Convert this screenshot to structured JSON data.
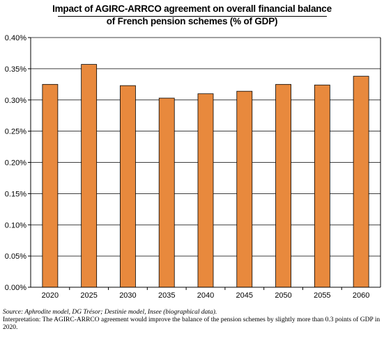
{
  "chart_data": {
    "type": "bar",
    "title": "Impact of AGIRC-ARRCO agreement on overall financial balance of French pension schemes (% of GDP)",
    "title_lines": [
      "Impact of AGIRC-ARRCO agreement on overall financial balance",
      "of French pension schemes (% of GDP)"
    ],
    "categories": [
      "2020",
      "2025",
      "2030",
      "2035",
      "2040",
      "2045",
      "2050",
      "2055",
      "2060"
    ],
    "values": [
      0.325,
      0.357,
      0.323,
      0.303,
      0.31,
      0.314,
      0.325,
      0.324,
      0.338
    ],
    "yticks": [
      0.0,
      0.05,
      0.1,
      0.15,
      0.2,
      0.25,
      0.3,
      0.35,
      0.4
    ],
    "ytick_labels": [
      "0.00%",
      "0.05%",
      "0.10%",
      "0.15%",
      "0.20%",
      "0.25%",
      "0.30%",
      "0.35%",
      "0.40%"
    ],
    "ylim": [
      0,
      0.4
    ],
    "xlabel": "",
    "ylabel": "",
    "grid": true,
    "legend": "none",
    "bar_color": "#e8893d",
    "bar_edge_color": "#000000"
  },
  "footer": {
    "source": "Source: Aphrodite model, DG Trésor; Destinie model, Insee (biographical data).",
    "interpretation": "Interpretation: The AGIRC-ARRCO agreement would improve the balance of the pension schemes by slightly more than 0.3 points of GDP in 2020."
  }
}
